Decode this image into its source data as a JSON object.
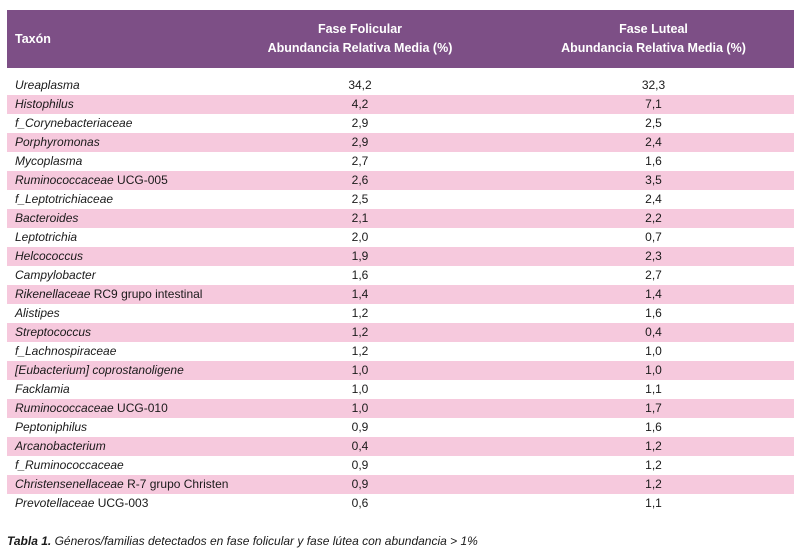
{
  "table": {
    "headers": {
      "taxon": "Taxón",
      "follicular_line1": "Fase Folicular",
      "follicular_line2": "Abundancia Relativa Media (%)",
      "luteal_line1": "Fase Luteal",
      "luteal_line2": "Abundancia Relativa Media (%)"
    },
    "rows": [
      {
        "name_italic": "Ureaplasma",
        "name_plain": "",
        "follicular": "34,2",
        "luteal": "32,3"
      },
      {
        "name_italic": "Histophilus",
        "name_plain": "",
        "follicular": "4,2",
        "luteal": "7,1"
      },
      {
        "name_italic": "f_Corynebacteriaceae",
        "name_plain": "",
        "follicular": "2,9",
        "luteal": "2,5"
      },
      {
        "name_italic": "Porphyromonas",
        "name_plain": "",
        "follicular": "2,9",
        "luteal": "2,4"
      },
      {
        "name_italic": "Mycoplasma",
        "name_plain": "",
        "follicular": "2,7",
        "luteal": "1,6"
      },
      {
        "name_italic": "Ruminococcaceae",
        "name_plain": " UCG-005",
        "follicular": "2,6",
        "luteal": "3,5"
      },
      {
        "name_italic": "f_Leptotrichiaceae",
        "name_plain": "",
        "follicular": "2,5",
        "luteal": "2,4"
      },
      {
        "name_italic": "Bacteroides",
        "name_plain": "",
        "follicular": "2,1",
        "luteal": "2,2"
      },
      {
        "name_italic": "Leptotrichia",
        "name_plain": "",
        "follicular": "2,0",
        "luteal": "0,7"
      },
      {
        "name_italic": "Helcococcus",
        "name_plain": "",
        "follicular": "1,9",
        "luteal": "2,3"
      },
      {
        "name_italic": "Campylobacter",
        "name_plain": "",
        "follicular": "1,6",
        "luteal": "2,7"
      },
      {
        "name_italic": "Rikenellaceae",
        "name_plain": " RC9 grupo intestinal",
        "follicular": "1,4",
        "luteal": "1,4"
      },
      {
        "name_italic": "Alistipes",
        "name_plain": "",
        "follicular": "1,2",
        "luteal": "1,6"
      },
      {
        "name_italic": "Streptococcus",
        "name_plain": "",
        "follicular": "1,2",
        "luteal": "0,4"
      },
      {
        "name_italic": "f_Lachnospiraceae",
        "name_plain": "",
        "follicular": "1,2",
        "luteal": "1,0"
      },
      {
        "name_italic": "[Eubacterium] coprostanoligene",
        "name_plain": "",
        "follicular": "1,0",
        "luteal": "1,0"
      },
      {
        "name_italic": "Facklamia",
        "name_plain": "",
        "follicular": "1,0",
        "luteal": "1,1"
      },
      {
        "name_italic": "Ruminococcaceae",
        "name_plain": " UCG-010",
        "follicular": "1,0",
        "luteal": "1,7"
      },
      {
        "name_italic": "Peptoniphilus",
        "name_plain": "",
        "follicular": "0,9",
        "luteal": "1,6"
      },
      {
        "name_italic": "Arcanobacterium",
        "name_plain": "",
        "follicular": "0,4",
        "luteal": "1,2"
      },
      {
        "name_italic": "f_Ruminococcaceae",
        "name_plain": "",
        "follicular": "0,9",
        "luteal": "1,2"
      },
      {
        "name_italic": "Christensenellaceae",
        "name_plain": " R-7 grupo Christen",
        "follicular": "0,9",
        "luteal": "1,2"
      },
      {
        "name_italic": "Prevotellaceae",
        "name_plain": " UCG-003",
        "follicular": "0,6",
        "luteal": "1,1"
      }
    ]
  },
  "caption": {
    "label": "Tabla 1.",
    "text": " Géneros/familias detectados en fase folicular y fase lútea con abundancia > 1%"
  },
  "colors": {
    "header_bg": "#7d4f86",
    "stripe": "#f6c9dd"
  }
}
